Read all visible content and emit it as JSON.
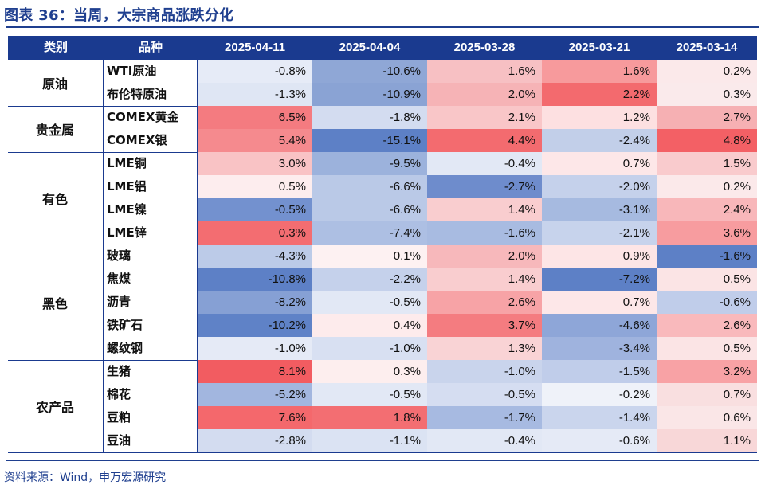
{
  "title": "图表 36：当周，大宗商品涨跌分化",
  "source": "资料来源：Wind，申万宏源研究",
  "table": {
    "headers": [
      "类别",
      "品种",
      "2025-04-11",
      "2025-04-04",
      "2025-03-28",
      "2025-03-21",
      "2025-03-14"
    ],
    "groups": [
      {
        "name": "原油",
        "rows": [
          {
            "name": "WTI原油",
            "values": [
              "-0.8%",
              "-10.6%",
              "1.6%",
              "1.6%",
              "0.2%"
            ]
          },
          {
            "name": "布伦特原油",
            "values": [
              "-1.3%",
              "-10.9%",
              "2.0%",
              "2.2%",
              "0.3%"
            ]
          }
        ]
      },
      {
        "name": "贵金属",
        "rows": [
          {
            "name": "COMEX黄金",
            "values": [
              "6.5%",
              "-1.8%",
              "2.1%",
              "1.2%",
              "2.7%"
            ]
          },
          {
            "name": "COMEX银",
            "values": [
              "5.4%",
              "-15.1%",
              "4.4%",
              "-2.4%",
              "4.8%"
            ]
          }
        ]
      },
      {
        "name": "有色",
        "rows": [
          {
            "name": "LME铜",
            "values": [
              "3.0%",
              "-9.5%",
              "-0.4%",
              "0.7%",
              "1.5%"
            ]
          },
          {
            "name": "LME铝",
            "values": [
              "0.5%",
              "-6.6%",
              "-2.7%",
              "-2.0%",
              "0.2%"
            ]
          },
          {
            "name": "LME镍",
            "values": [
              "-0.5%",
              "-6.6%",
              "1.4%",
              "-3.1%",
              "2.4%"
            ]
          },
          {
            "name": "LME锌",
            "values": [
              "0.3%",
              "-7.4%",
              "-1.6%",
              "-2.1%",
              "3.6%"
            ]
          }
        ]
      },
      {
        "name": "黑色",
        "rows": [
          {
            "name": "玻璃",
            "values": [
              "-4.3%",
              "0.1%",
              "2.0%",
              "0.9%",
              "-1.6%"
            ]
          },
          {
            "name": "焦煤",
            "values": [
              "-10.8%",
              "-2.2%",
              "1.4%",
              "-7.2%",
              "0.5%"
            ]
          },
          {
            "name": "沥青",
            "values": [
              "-8.2%",
              "-0.5%",
              "2.6%",
              "0.7%",
              "-0.6%"
            ]
          },
          {
            "name": "铁矿石",
            "values": [
              "-10.2%",
              "0.4%",
              "3.7%",
              "-4.6%",
              "2.6%"
            ]
          },
          {
            "name": "螺纹钢",
            "values": [
              "-1.0%",
              "-1.0%",
              "1.3%",
              "-3.4%",
              "0.5%"
            ]
          }
        ]
      },
      {
        "name": "农产品",
        "rows": [
          {
            "name": "生猪",
            "values": [
              "8.1%",
              "0.3%",
              "-1.0%",
              "-1.5%",
              "3.2%"
            ]
          },
          {
            "name": "棉花",
            "values": [
              "-5.2%",
              "-0.5%",
              "-0.5%",
              "-0.2%",
              "0.7%"
            ]
          },
          {
            "name": "豆粕",
            "values": [
              "7.6%",
              "1.8%",
              "-1.7%",
              "-1.4%",
              "0.6%"
            ]
          },
          {
            "name": "豆油",
            "values": [
              "-2.8%",
              "-1.1%",
              "-0.4%",
              "-0.6%",
              "1.1%"
            ]
          }
        ]
      }
    ],
    "cell_colors": [
      [
        "#e6ebf7",
        "#8fa7d6",
        "#f7c0c3",
        "#f79a9c",
        "#fbe9ea"
      ],
      [
        "#dfe6f4",
        "#8aa3d4",
        "#f6b3b6",
        "#f36a6e",
        "#faeaeb"
      ],
      [
        "#f47b80",
        "#d3dcf0",
        "#f9c6c8",
        "#fde0e1",
        "#f6b0b3"
      ],
      [
        "#f58a8e",
        "#5d80c6",
        "#f36b6f",
        "#c2cfe9",
        "#f36065"
      ],
      [
        "#f9c3c5",
        "#9cb2dc",
        "#e2e8f5",
        "#fde7e8",
        "#f9cbcd"
      ],
      [
        "#fdedee",
        "#bac9e7",
        "#6e8ccc",
        "#c5d1eb",
        "#fbe9ea"
      ],
      [
        "#7391cf",
        "#bac9e7",
        "#f9cdcf",
        "#a6bae0",
        "#f8b7ba"
      ],
      [
        "#f36d71",
        "#adbfe3",
        "#a8bbe1",
        "#c7d3ec",
        "#f79c9f"
      ],
      [
        "#bccbe8",
        "#fdf1f2",
        "#f7b8bb",
        "#fde5e6",
        "#5d80c6"
      ],
      [
        "#5d80c6",
        "#c5d1eb",
        "#f9cdcf",
        "#5d80c6",
        "#fbe4e5"
      ],
      [
        "#86a0d4",
        "#e2e8f5",
        "#f7a3a6",
        "#fde7e8",
        "#c0cdea"
      ],
      [
        "#5f82c7",
        "#fdebec",
        "#f47c80",
        "#8ea6d8",
        "#f9b9bc"
      ],
      [
        "#e5eaf6",
        "#d8e0f2",
        "#f9d3d5",
        "#9fb3de",
        "#fbe4e5"
      ],
      [
        "#f25c61",
        "#fdeeee",
        "#c9d4ec",
        "#c0cdea",
        "#f8a2a5"
      ],
      [
        "#a2b6df",
        "#e2e8f5",
        "#d5ddf1",
        "#eff2f9",
        "#f9dfe0"
      ],
      [
        "#f4686c",
        "#f36e72",
        "#a7bae1",
        "#cad5ed",
        "#fae6e7"
      ],
      [
        "#d3dcf0",
        "#dbe3f3",
        "#e2e8f5",
        "#e5eaf6",
        "#f8d7d8"
      ]
    ]
  }
}
